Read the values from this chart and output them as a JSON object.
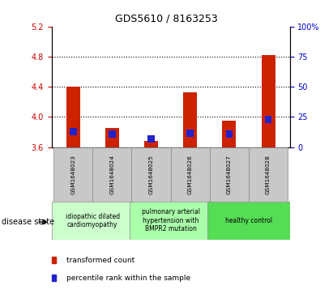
{
  "title": "GDS5610 / 8163253",
  "samples": [
    "GSM1648023",
    "GSM1648024",
    "GSM1648025",
    "GSM1648026",
    "GSM1648027",
    "GSM1648028"
  ],
  "transformed_counts": [
    4.4,
    3.85,
    3.68,
    4.33,
    3.95,
    4.82
  ],
  "percentile_ranks": [
    12,
    10,
    6,
    11,
    10,
    22
  ],
  "ymin": 3.6,
  "ymax": 5.2,
  "yticks": [
    3.6,
    4.0,
    4.4,
    4.8,
    5.2
  ],
  "right_yticks": [
    0,
    25,
    50,
    75,
    100
  ],
  "bar_color": "#cc2200",
  "percentile_color": "#2222cc",
  "bar_width": 0.35,
  "group_colors": [
    "#ccffcc",
    "#aaffaa",
    "#55dd55"
  ],
  "group_labels": [
    "idiopathic dilated\ncardiomyopathy",
    "pulmonary arterial\nhypertension with\nBMPR2 mutation",
    "healthy control"
  ],
  "group_ranges": [
    [
      0,
      2
    ],
    [
      2,
      4
    ],
    [
      4,
      6
    ]
  ],
  "disease_state_label": "disease state",
  "left_tick_color": "#cc0000",
  "right_tick_color": "#0000cc",
  "grid_color": "black",
  "grid_style": "dotted",
  "sample_box_color": "#c8c8c8",
  "plot_bg": "white"
}
